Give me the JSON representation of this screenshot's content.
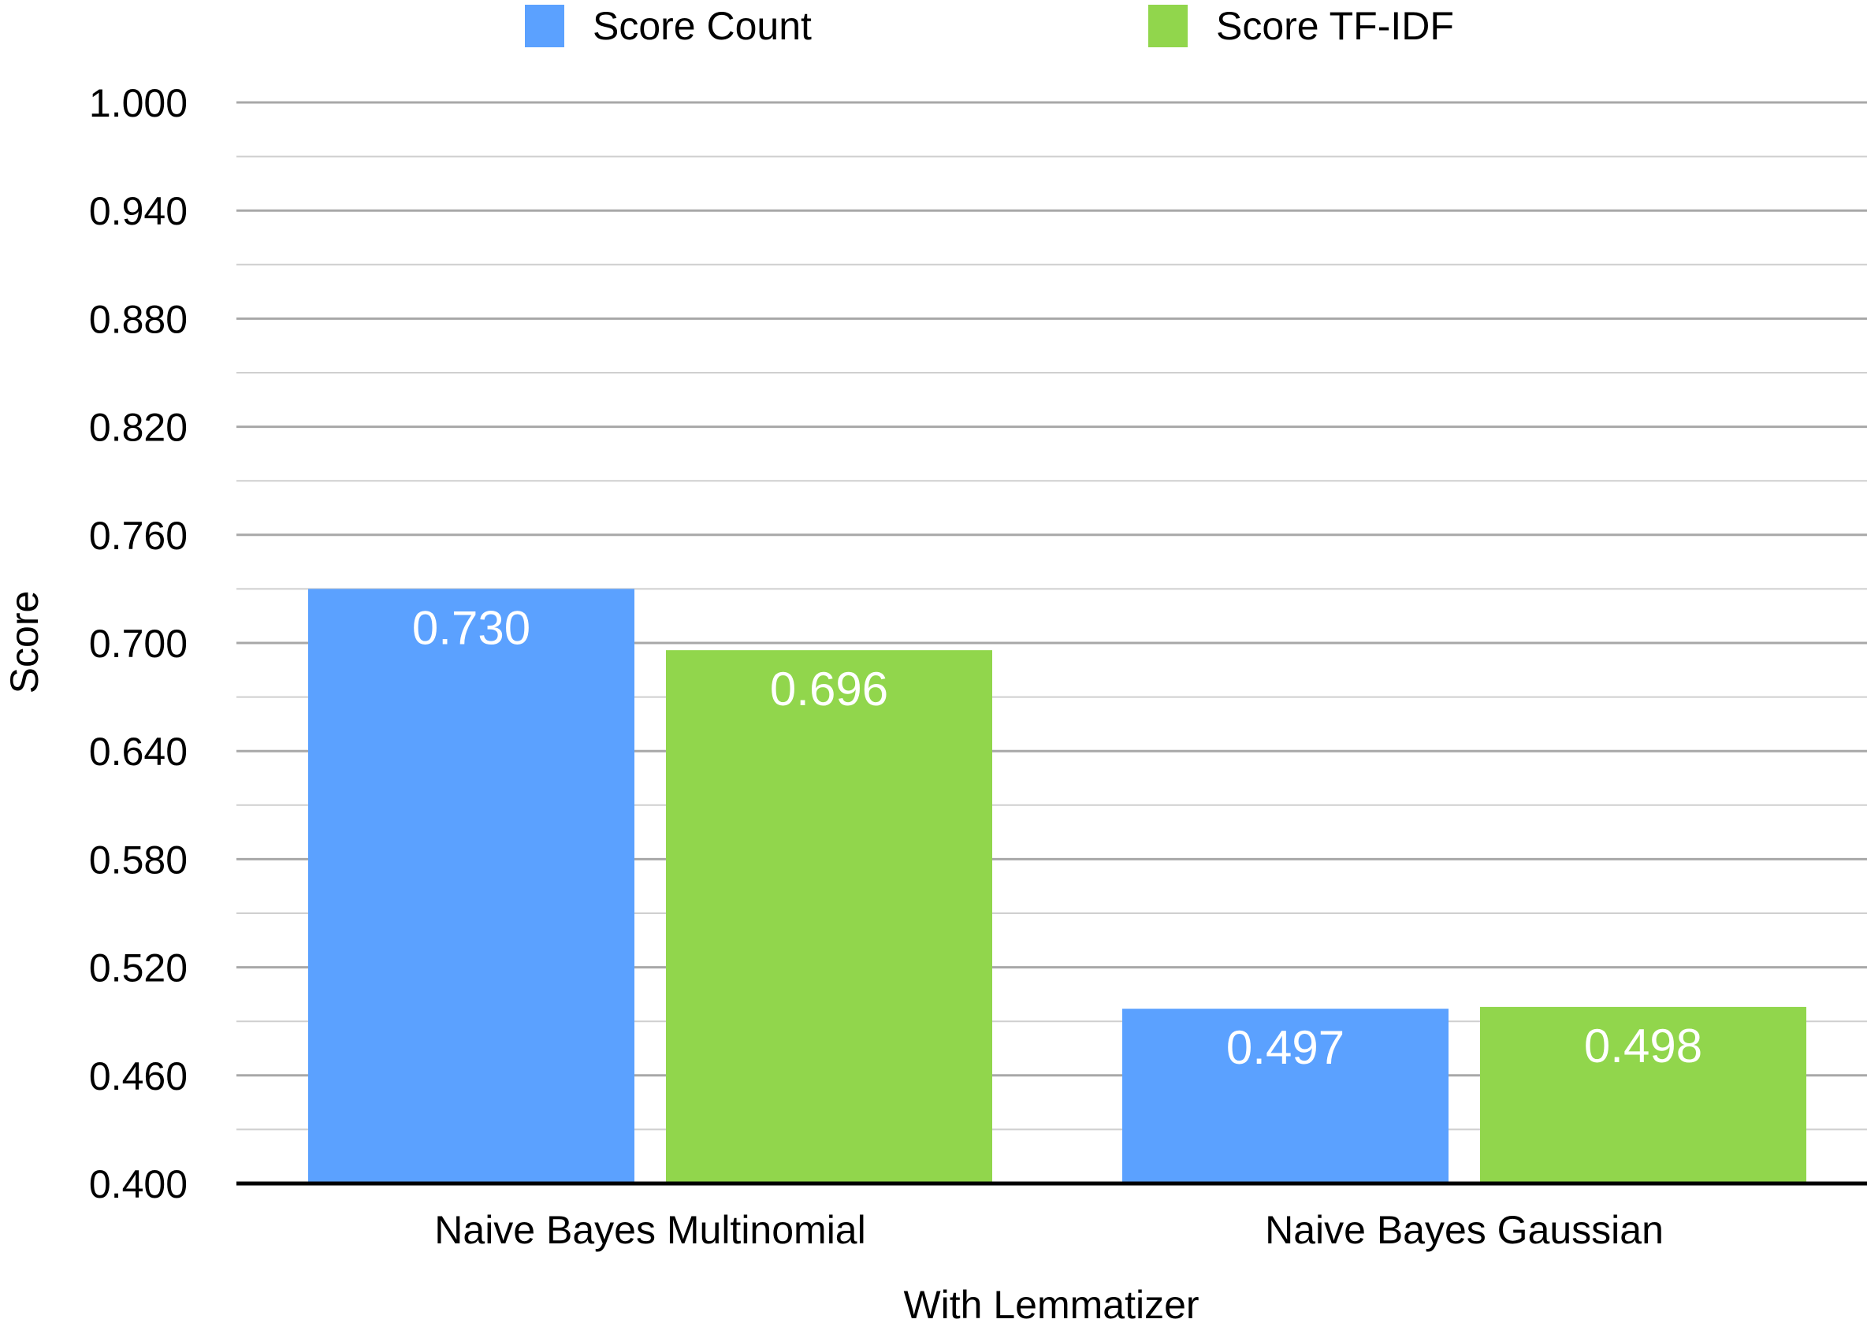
{
  "chart_data": {
    "type": "bar",
    "title": "",
    "xlabel": "With Lemmatizer",
    "ylabel": "Score",
    "categories": [
      "Naive Bayes Multinomial",
      "Naive Bayes Gaussian"
    ],
    "series": [
      {
        "name": "Score Count",
        "color": "#5BA1FF",
        "values": [
          0.73,
          0.497
        ],
        "labels": [
          "0.730",
          "0.497"
        ]
      },
      {
        "name": "Score TF-IDF",
        "color": "#91D64C",
        "values": [
          0.696,
          0.498
        ],
        "labels": [
          "0.696",
          "0.498"
        ]
      }
    ],
    "ylim": [
      0.4,
      1.0
    ],
    "yticks": [
      0.4,
      0.46,
      0.52,
      0.58,
      0.64,
      0.7,
      0.76,
      0.82,
      0.88,
      0.94,
      1.0
    ],
    "ytick_labels": [
      "0.400",
      "0.460",
      "0.520",
      "0.580",
      "0.640",
      "0.700",
      "0.760",
      "0.820",
      "0.880",
      "0.940",
      "1.000"
    ],
    "minor_grid_step": 0.03,
    "grid": true,
    "legend_position": "top-center"
  }
}
